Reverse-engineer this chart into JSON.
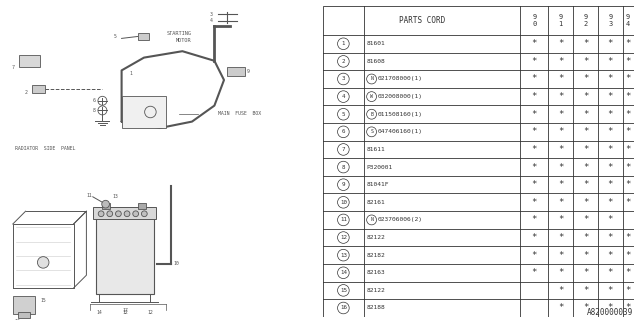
{
  "title": "A820000039",
  "bg_color": "#ffffff",
  "rows": [
    {
      "num": "1",
      "prefix": "",
      "code": "81601",
      "stars": [
        1,
        1,
        1,
        1,
        1
      ]
    },
    {
      "num": "2",
      "prefix": "",
      "code": "81608",
      "stars": [
        1,
        1,
        1,
        1,
        1
      ]
    },
    {
      "num": "3",
      "prefix": "N",
      "code": "021708000(1)",
      "stars": [
        1,
        1,
        1,
        1,
        1
      ]
    },
    {
      "num": "4",
      "prefix": "W",
      "code": "032008000(1)",
      "stars": [
        1,
        1,
        1,
        1,
        1
      ]
    },
    {
      "num": "5",
      "prefix": "B",
      "code": "011508160(1)",
      "stars": [
        1,
        1,
        1,
        1,
        1
      ]
    },
    {
      "num": "6",
      "prefix": "S",
      "code": "047406160(1)",
      "stars": [
        1,
        1,
        1,
        1,
        1
      ]
    },
    {
      "num": "7",
      "prefix": "",
      "code": "81611",
      "stars": [
        1,
        1,
        1,
        1,
        1
      ]
    },
    {
      "num": "8",
      "prefix": "",
      "code": "P320001",
      "stars": [
        1,
        1,
        1,
        1,
        1
      ]
    },
    {
      "num": "9",
      "prefix": "",
      "code": "81041F",
      "stars": [
        1,
        1,
        1,
        1,
        1
      ]
    },
    {
      "num": "10",
      "prefix": "",
      "code": "82161",
      "stars": [
        1,
        1,
        1,
        1,
        1
      ]
    },
    {
      "num": "11",
      "prefix": "N",
      "code": "023706006(2)",
      "stars": [
        1,
        1,
        1,
        1,
        0
      ]
    },
    {
      "num": "12",
      "prefix": "",
      "code": "82122",
      "stars": [
        1,
        1,
        1,
        1,
        1
      ]
    },
    {
      "num": "13",
      "prefix": "",
      "code": "82182",
      "stars": [
        1,
        1,
        1,
        1,
        1
      ]
    },
    {
      "num": "14",
      "prefix": "",
      "code": "82163",
      "stars": [
        1,
        1,
        1,
        1,
        1
      ]
    },
    {
      "num": "15",
      "prefix": "",
      "code": "82122",
      "stars": [
        0,
        1,
        1,
        1,
        1
      ]
    },
    {
      "num": "16",
      "prefix": "",
      "code": "82188",
      "stars": [
        0,
        1,
        1,
        1,
        1
      ]
    }
  ],
  "gray": "#555555",
  "tbl_color": "#333333"
}
